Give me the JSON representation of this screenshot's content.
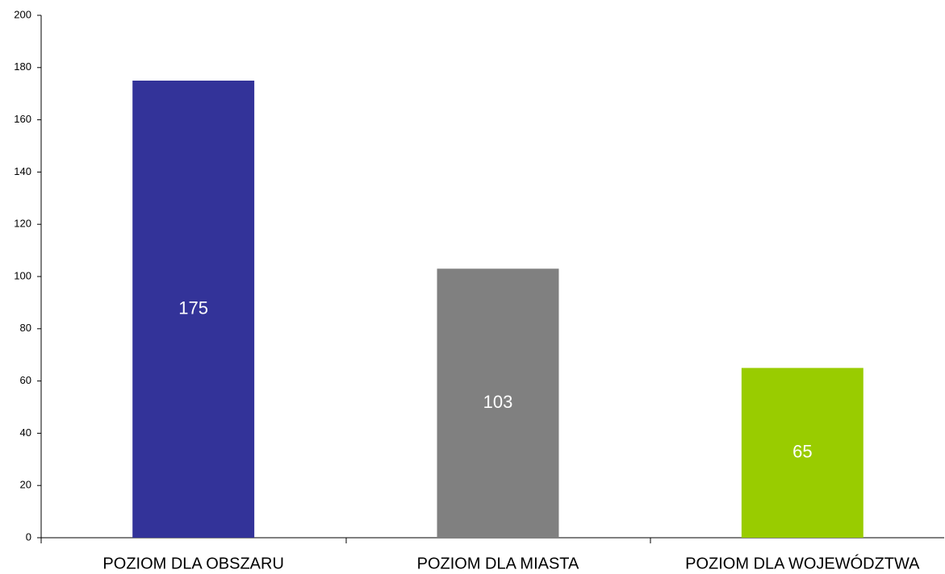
{
  "chart_data": {
    "type": "bar",
    "categories": [
      "POZIOM DLA OBSZARU",
      "POZIOM DLA MIASTA",
      "POZIOM DLA WOJEWÓDZTWA"
    ],
    "values": [
      175,
      103,
      65
    ],
    "colors": [
      "#333399",
      "#808080",
      "#99cc00"
    ],
    "ylim": [
      0,
      200
    ],
    "yticks": [
      0,
      20,
      40,
      60,
      80,
      100,
      120,
      140,
      160,
      180,
      200
    ],
    "grid": false
  }
}
